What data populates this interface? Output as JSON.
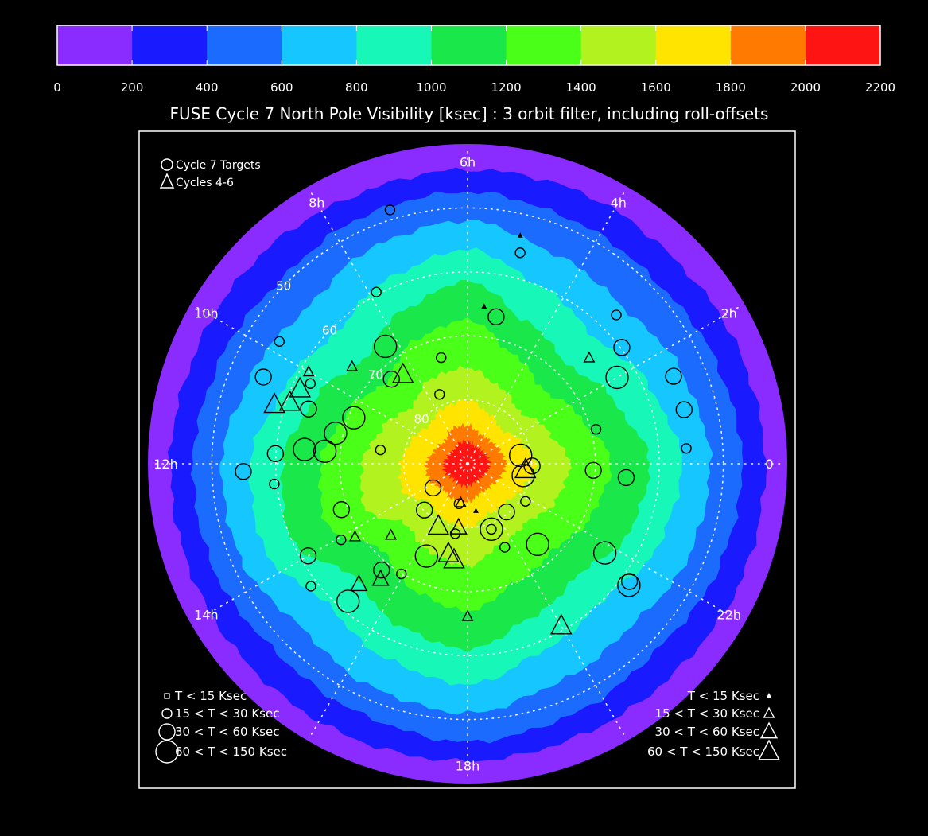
{
  "chart_data": {
    "type": "polar-visibility-map",
    "title": "FUSE Cycle 7 North Pole Visibility [ksec] : 3 orbit filter, including roll-offsets",
    "colorbar": {
      "ticks": [
        "0",
        "200",
        "400",
        "600",
        "800",
        "1000",
        "1200",
        "1400",
        "1600",
        "1800",
        "2000",
        "2200"
      ],
      "colors": [
        "#8a2cff",
        "#1a1aff",
        "#1c6bff",
        "#16c6ff",
        "#16f7b8",
        "#1ae84a",
        "#4aff18",
        "#b2f21e",
        "#ffe400",
        "#ff7a00",
        "#ff1414"
      ]
    },
    "hour_labels": [
      {
        "label": "6h",
        "angle": 90
      },
      {
        "label": "4h",
        "angle": 60
      },
      {
        "label": "2h",
        "angle": 30
      },
      {
        "label": "0",
        "angle": 0
      },
      {
        "label": "22h",
        "angle": -30
      },
      {
        "label": "18h",
        "angle": -90
      },
      {
        "label": "14h",
        "angle": -150
      },
      {
        "label": "12h",
        "angle": 180
      },
      {
        "label": "10h",
        "angle": 150
      },
      {
        "label": "8h",
        "angle": 120
      }
    ],
    "dec_labels": [
      "50",
      "60",
      "70",
      "80"
    ],
    "visibility_contours_ksec": [
      {
        "min": 0,
        "max": 200,
        "radius": [
          1.0,
          1.0,
          1.0,
          1.0,
          1.0,
          1.0,
          1.0,
          1.0,
          1.0,
          1.0,
          1.0,
          1.0,
          1.0,
          1.0,
          1.0,
          1.0
        ]
      },
      {
        "min": 200,
        "max": 400,
        "radius": [
          0.93,
          0.92,
          0.91,
          0.92,
          0.92,
          0.91,
          0.92,
          0.92,
          0.93,
          0.93,
          0.93,
          0.93,
          0.93,
          0.92,
          0.92,
          0.93
        ]
      },
      {
        "min": 400,
        "max": 600,
        "radius": [
          0.86,
          0.84,
          0.82,
          0.83,
          0.85,
          0.84,
          0.82,
          0.84,
          0.86,
          0.86,
          0.84,
          0.85,
          0.87,
          0.85,
          0.83,
          0.85
        ]
      },
      {
        "min": 600,
        "max": 800,
        "radius": [
          0.76,
          0.73,
          0.69,
          0.71,
          0.76,
          0.74,
          0.7,
          0.73,
          0.77,
          0.77,
          0.73,
          0.76,
          0.78,
          0.74,
          0.72,
          0.75
        ]
      },
      {
        "min": 800,
        "max": 1000,
        "radius": [
          0.67,
          0.62,
          0.56,
          0.6,
          0.67,
          0.63,
          0.58,
          0.62,
          0.68,
          0.69,
          0.62,
          0.66,
          0.69,
          0.63,
          0.6,
          0.65
        ]
      },
      {
        "min": 1000,
        "max": 1200,
        "radius": [
          0.57,
          0.5,
          0.44,
          0.48,
          0.57,
          0.52,
          0.46,
          0.52,
          0.58,
          0.6,
          0.5,
          0.55,
          0.58,
          0.52,
          0.49,
          0.55
        ]
      },
      {
        "min": 1200,
        "max": 1400,
        "radius": [
          0.45,
          0.38,
          0.33,
          0.37,
          0.45,
          0.42,
          0.36,
          0.41,
          0.46,
          0.48,
          0.38,
          0.43,
          0.46,
          0.4,
          0.38,
          0.42
        ]
      },
      {
        "min": 1400,
        "max": 1600,
        "radius": [
          0.32,
          0.27,
          0.23,
          0.26,
          0.3,
          0.29,
          0.25,
          0.29,
          0.33,
          0.35,
          0.27,
          0.3,
          0.32,
          0.27,
          0.26,
          0.3
        ]
      },
      {
        "min": 1600,
        "max": 1800,
        "radius": [
          0.21,
          0.18,
          0.15,
          0.17,
          0.2,
          0.19,
          0.17,
          0.19,
          0.21,
          0.22,
          0.17,
          0.19,
          0.2,
          0.17,
          0.17,
          0.19
        ]
      },
      {
        "min": 1800,
        "max": 2000,
        "radius": [
          0.12,
          0.11,
          0.1,
          0.1,
          0.12,
          0.12,
          0.1,
          0.11,
          0.13,
          0.13,
          0.11,
          0.12,
          0.12,
          0.1,
          0.1,
          0.11
        ]
      },
      {
        "min": 2000,
        "max": 2200,
        "radius": [
          0.07,
          0.065,
          0.06,
          0.06,
          0.07,
          0.07,
          0.06,
          0.065,
          0.075,
          0.075,
          0.065,
          0.07,
          0.07,
          0.06,
          0.06,
          0.065
        ]
      }
    ],
    "targets": [
      {
        "cycle": "7",
        "ra_deg": 161,
        "dec": 63.7,
        "t_ksec": 40
      },
      {
        "cycle": "7",
        "ra_deg": 153,
        "dec": 62.4,
        "t_ksec": 25
      },
      {
        "cycle": "7",
        "ra_deg": 157,
        "dec": 55.3,
        "t_ksec": 40
      },
      {
        "cycle": "7",
        "ra_deg": 147,
        "dec": 54.9,
        "t_ksec": 25
      },
      {
        "cycle": "7",
        "ra_deg": 125,
        "dec": 67.6,
        "t_ksec": 100
      },
      {
        "cycle": "7",
        "ra_deg": 118,
        "dec": 59.6,
        "t_ksec": 20
      },
      {
        "cycle": "7",
        "ra_deg": 107,
        "dec": 48.5,
        "t_ksec": 25
      },
      {
        "cycle": "7",
        "ra_deg": 76,
        "dec": 56.0,
        "t_ksec": 25
      },
      {
        "cycle": "7",
        "ra_deg": 79,
        "dec": 66.6,
        "t_ksec": 50
      },
      {
        "cycle": "7",
        "ra_deg": 30,
        "dec": 63.0,
        "t_ksec": 100
      },
      {
        "cycle": "7",
        "ra_deg": 37,
        "dec": 59.8,
        "t_ksec": 40
      },
      {
        "cycle": "7",
        "ra_deg": 23,
        "dec": 55.0,
        "t_ksec": 50
      },
      {
        "cycle": "7",
        "ra_deg": 45,
        "dec": 57.1,
        "t_ksec": 25
      },
      {
        "cycle": "7",
        "ra_deg": 15,
        "dec": 69.2,
        "t_ksec": 25
      },
      {
        "cycle": "7",
        "ra_deg": -3,
        "dec": 70.3,
        "t_ksec": 40
      },
      {
        "cycle": "7",
        "ra_deg": -2,
        "dec": 79.9,
        "t_ksec": 40
      },
      {
        "cycle": "7",
        "ra_deg": 9,
        "dec": 81.6,
        "t_ksec": 100
      },
      {
        "cycle": "7",
        "ra_deg": -12,
        "dec": 81.1,
        "t_ksec": 100
      },
      {
        "cycle": "7",
        "ra_deg": -33,
        "dec": 64.4,
        "t_ksec": 60
      },
      {
        "cycle": "7",
        "ra_deg": -36,
        "dec": 58.7,
        "t_ksec": 50
      },
      {
        "cycle": "7",
        "ra_deg": -37,
        "dec": 58.4,
        "t_ksec": 60
      },
      {
        "cycle": "7",
        "ra_deg": -49,
        "dec": 73.3,
        "t_ksec": 100
      },
      {
        "cycle": "7",
        "ra_deg": -66,
        "dec": 75.7,
        "t_ksec": 25
      },
      {
        "cycle": "7",
        "ra_deg": -70,
        "dec": 79.1,
        "t_ksec": 60
      },
      {
        "cycle": "7",
        "ra_deg": -70,
        "dec": 79.1,
        "t_ksec": 20
      },
      {
        "cycle": "7",
        "ra_deg": -114,
        "dec": 74.2,
        "t_ksec": 100
      },
      {
        "cycle": "7",
        "ra_deg": -131,
        "dec": 61.5,
        "t_ksec": 100
      },
      {
        "cycle": "7",
        "ra_deg": -150,
        "dec": 61.2,
        "t_ksec": 40
      },
      {
        "cycle": "7",
        "ra_deg": -142,
        "dec": 58.9,
        "t_ksec": 25
      },
      {
        "cycle": "7",
        "ra_deg": -129,
        "dec": 68.6,
        "t_ksec": 40
      },
      {
        "cycle": "7",
        "ra_deg": -121,
        "dec": 69.9,
        "t_ksec": 25
      },
      {
        "cycle": "7",
        "ra_deg": -160,
        "dec": 69.0,
        "t_ksec": 40
      },
      {
        "cycle": "7",
        "ra_deg": -174,
        "dec": 59.6,
        "t_ksec": 25
      },
      {
        "cycle": "7",
        "ra_deg": -178,
        "dec": 54.9,
        "t_ksec": 40
      },
      {
        "cycle": "7",
        "ra_deg": 175,
        "dec": 64.4,
        "t_ksec": 100
      },
      {
        "cycle": "7",
        "ra_deg": 175,
        "dec": 67.6,
        "t_ksec": 100
      },
      {
        "cycle": "7",
        "ra_deg": 167,
        "dec": 68.8,
        "t_ksec": 100
      },
      {
        "cycle": "7",
        "ra_deg": 158,
        "dec": 70.8,
        "t_ksec": 100
      },
      {
        "cycle": "7",
        "ra_deg": 132,
        "dec": 72.2,
        "t_ksec": 30
      },
      {
        "cycle": "7",
        "ra_deg": 104,
        "dec": 72.9,
        "t_ksec": 25
      },
      {
        "cycle": "7",
        "ra_deg": 112,
        "dec": 78.3,
        "t_ksec": 25
      },
      {
        "cycle": "7",
        "ra_deg": -33,
        "dec": 79.2,
        "t_ksec": 25
      },
      {
        "cycle": "7",
        "ra_deg": -51,
        "dec": 80.3,
        "t_ksec": 40
      },
      {
        "cycle": "7",
        "ra_deg": -100,
        "dec": 78.9,
        "t_ksec": 20
      },
      {
        "cycle": "7",
        "ra_deg": -102,
        "dec": 83.6,
        "t_ksec": 20
      },
      {
        "cycle": "7",
        "ra_deg": -133,
        "dec": 80.1,
        "t_ksec": 40
      },
      {
        "cycle": "7",
        "ra_deg": -145,
        "dec": 83.4,
        "t_ksec": 40
      },
      {
        "cycle": "7",
        "ra_deg": 171,
        "dec": 76.2,
        "t_ksec": 20
      },
      {
        "cycle": "7",
        "ra_deg": -5,
        "dec": 65.1,
        "t_ksec": 40
      },
      {
        "cycle": "7",
        "ra_deg": 14,
        "dec": 55.1,
        "t_ksec": 40
      },
      {
        "cycle": "7",
        "ra_deg": 4,
        "dec": 55.7,
        "t_ksec": 25
      },
      {
        "cycle": "7",
        "ra_deg": -149,
        "dec": 66.9,
        "t_ksec": 20
      },
      {
        "cycle": "7",
        "ra_deg": 177,
        "dec": 59.9,
        "t_ksec": 40
      }
    ],
    "prior_targets": [
      {
        "cycle": "4-6",
        "ra_deg": 126,
        "dec": 72.8,
        "t_ksec": 60
      },
      {
        "cycle": "4-6",
        "ra_deg": 163,
        "dec": 58.4,
        "t_ksec": 100
      },
      {
        "cycle": "4-6",
        "ra_deg": 161,
        "dec": 60.6,
        "t_ksec": 100
      },
      {
        "cycle": "4-6",
        "ra_deg": 156,
        "dec": 61.3,
        "t_ksec": 60
      },
      {
        "cycle": "4-6",
        "ra_deg": -6,
        "dec": 80.9,
        "t_ksec": 60
      },
      {
        "cycle": "4-6",
        "ra_deg": -115,
        "dec": 79.2,
        "t_ksec": 100
      },
      {
        "cycle": "4-6",
        "ra_deg": -102,
        "dec": 75.6,
        "t_ksec": 100
      },
      {
        "cycle": "4-6",
        "ra_deg": -98,
        "dec": 74.8,
        "t_ksec": 100
      },
      {
        "cycle": "4-6",
        "ra_deg": -132,
        "dec": 64.6,
        "t_ksec": 40
      },
      {
        "cycle": "4-6",
        "ra_deg": -127,
        "dec": 67.4,
        "t_ksec": 40
      },
      {
        "cycle": "4-6",
        "ra_deg": -98,
        "dec": 79.9,
        "t_ksec": 40
      },
      {
        "cycle": "4-6",
        "ra_deg": -90,
        "dec": 66.1,
        "t_ksec": 20
      },
      {
        "cycle": "4-6",
        "ra_deg": -60,
        "dec": 60.7,
        "t_ksec": 60
      },
      {
        "cycle": "4-6",
        "ra_deg": 84,
        "dec": 65.3,
        "t_ksec": 10
      },
      {
        "cycle": "4-6",
        "ra_deg": 77,
        "dec": 53.4,
        "t_ksec": 10
      },
      {
        "cycle": "4-6",
        "ra_deg": 41,
        "dec": 64.8,
        "t_ksec": 20
      },
      {
        "cycle": "4-6",
        "ra_deg": -100,
        "dec": 83.8,
        "t_ksec": 20
      },
      {
        "cycle": "4-6",
        "ra_deg": 150,
        "dec": 61.3,
        "t_ksec": 20
      },
      {
        "cycle": "4-6",
        "ra_deg": 140,
        "dec": 66.4,
        "t_ksec": 20
      },
      {
        "cycle": "4-6",
        "ra_deg": -137,
        "dec": 73.6,
        "t_ksec": 20
      },
      {
        "cycle": "4-6",
        "ra_deg": -80,
        "dec": 82.5,
        "t_ksec": 10
      },
      {
        "cycle": "4-6",
        "ra_deg": -147,
        "dec": 69.0,
        "t_ksec": 20
      }
    ],
    "legend_left": {
      "title_circle": "Cycle 7 Targets",
      "title_triangle": "Cycles 4-6",
      "size_labels": [
        "T < 15 Ksec",
        "15 < T < 30 Ksec",
        "30 < T < 60 Ksec",
        "60 < T < 150 Ksec"
      ]
    },
    "legend_right": {
      "size_labels": [
        "T < 15 Ksec",
        "15 < T < 30 Ksec",
        "30 < T < 60 Ksec",
        "60 < T < 150 Ksec"
      ]
    }
  }
}
